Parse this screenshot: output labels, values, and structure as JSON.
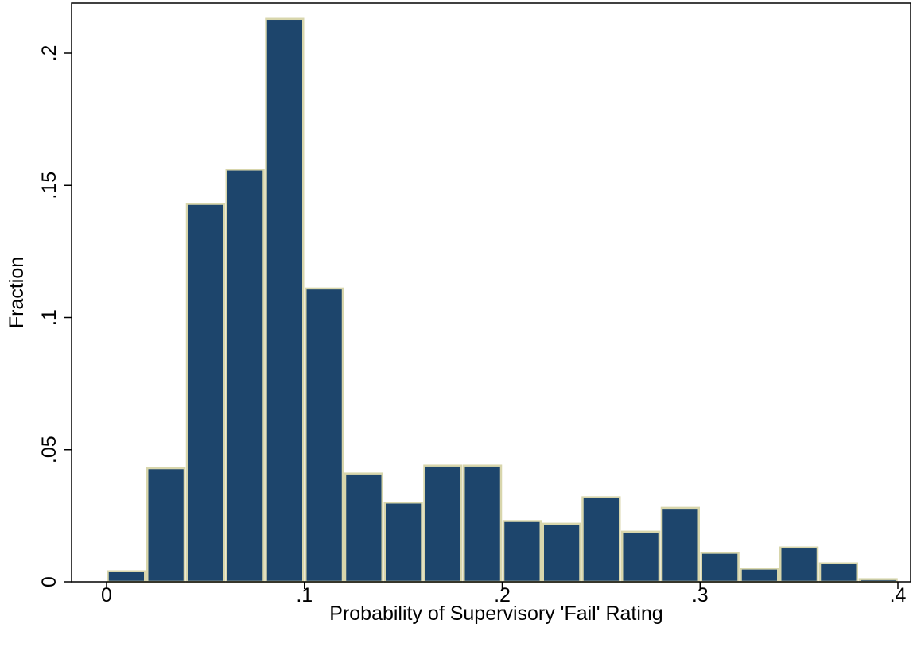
{
  "chart_data": {
    "type": "bar",
    "xlabel": "Probability of Supervisory 'Fail' Rating",
    "ylabel": "Fraction",
    "xlim": [
      0,
      0.4
    ],
    "ylim": [
      0,
      0.2
    ],
    "bin_width": 0.02,
    "bins_start": [
      0,
      0.02,
      0.04,
      0.06,
      0.08,
      0.1,
      0.12,
      0.14,
      0.16,
      0.18,
      0.2,
      0.22,
      0.24,
      0.26,
      0.28,
      0.3,
      0.32,
      0.34,
      0.36,
      0.38
    ],
    "values": [
      0.004,
      0.043,
      0.143,
      0.156,
      0.213,
      0.111,
      0.041,
      0.03,
      0.044,
      0.044,
      0.023,
      0.022,
      0.032,
      0.019,
      0.028,
      0.011,
      0.005,
      0.013,
      0.007,
      0.001
    ],
    "x_ticks": [
      0,
      0.1,
      0.2,
      0.3,
      0.4
    ],
    "x_tick_labels": [
      "0",
      ".1",
      ".2",
      ".3",
      ".4"
    ],
    "y_ticks": [
      0,
      0.05,
      0.1,
      0.15,
      0.2
    ],
    "y_tick_labels": [
      "0",
      ".05",
      ".1",
      ".15",
      ".2"
    ],
    "grid": false,
    "colors": {
      "bar_fill": "#1d456c",
      "bar_edge": "#d8d6ac",
      "axis": "#000000",
      "background": "#ffffff"
    }
  }
}
